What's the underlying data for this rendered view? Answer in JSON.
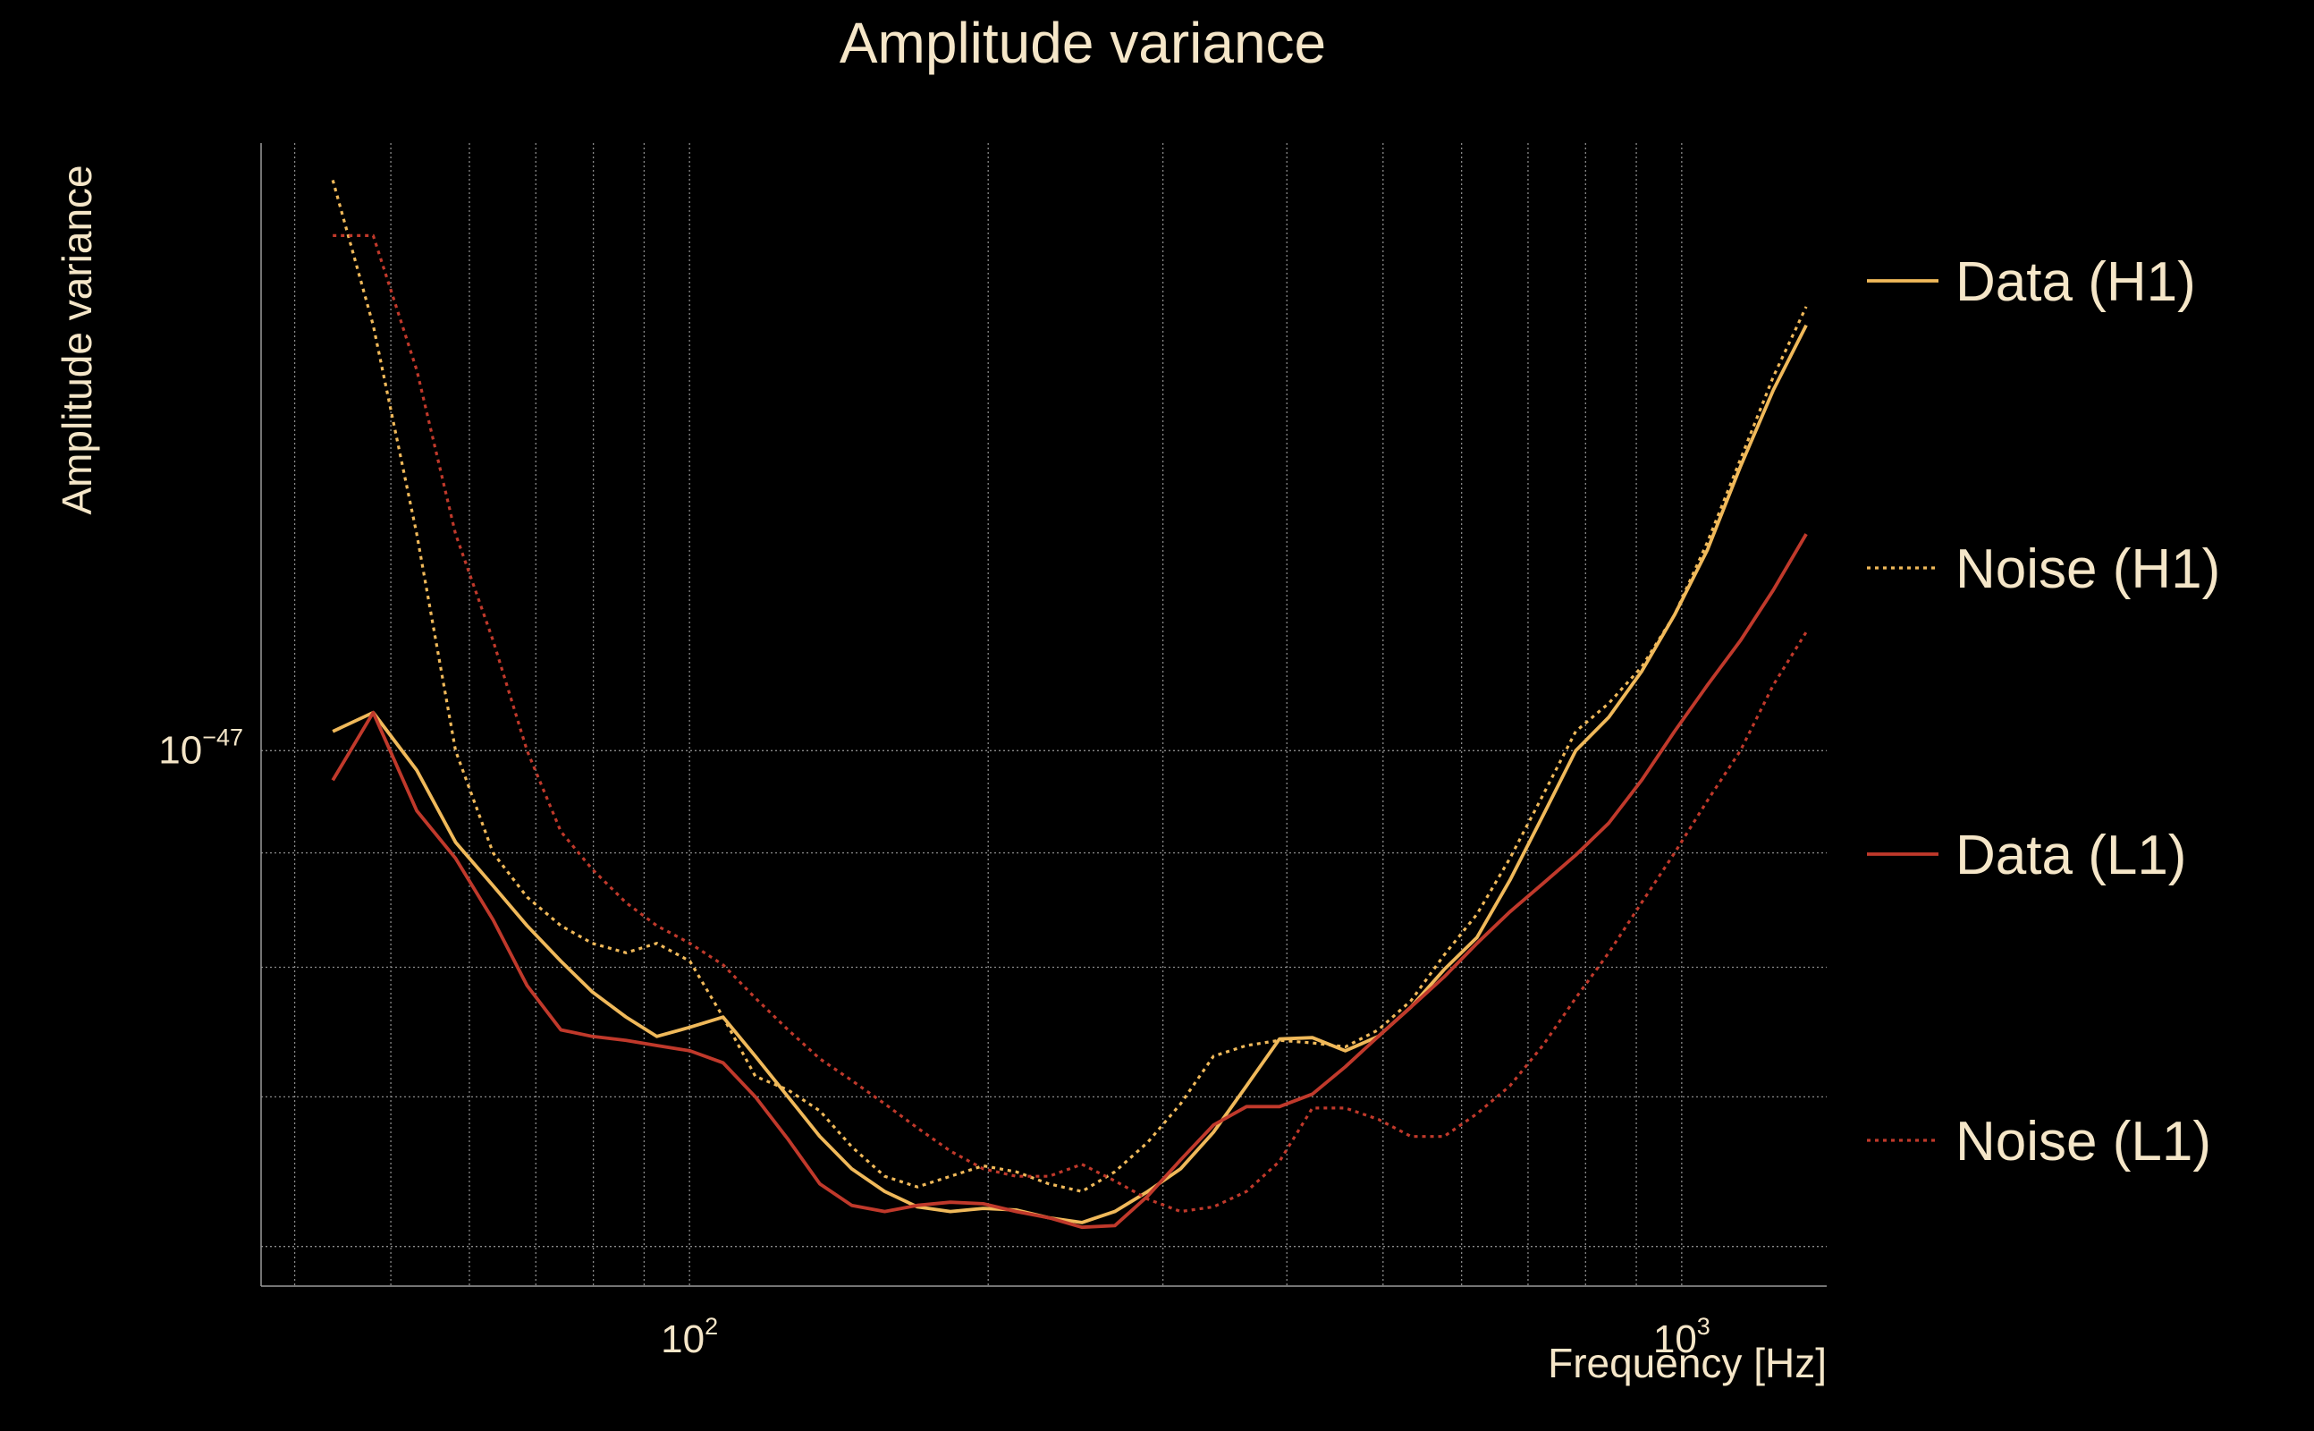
{
  "chart_data": {
    "type": "line",
    "title": "Amplitude variance",
    "xlabel": "Frequency [Hz]",
    "ylabel": "Amplitude variance",
    "xscale": "log",
    "yscale": "log",
    "xlim": [
      37,
      1400
    ],
    "ylim": [
      5.76e-48,
      1.87e-47
    ],
    "grid": true,
    "x_ticks": [
      {
        "value": 100,
        "base": "10",
        "exp": "2"
      },
      {
        "value": 1000,
        "base": "10",
        "exp": "3"
      }
    ],
    "y_ticks": [
      {
        "value": 1e-47,
        "base": "10",
        "exp": "−47"
      }
    ],
    "legend_position": "right",
    "x": [
      43.7,
      48.0,
      53.1,
      58.1,
      63.4,
      68.6,
      74.2,
      79.8,
      86.3,
      92.7,
      100.1,
      108.1,
      116.5,
      125.7,
      135.3,
      145.7,
      157.3,
      169.7,
      183.2,
      197.7,
      213.4,
      230.3,
      248.6,
      268.3,
      289.6,
      312.6,
      337.4,
      364.2,
      393.2,
      424.4,
      458.1,
      494.5,
      533.7,
      576.0,
      621.8,
      671.2,
      724.5,
      782.0,
      844.1,
      911.2,
      983.5,
      1061.6,
      1145.9,
      1236.9,
      1335.1
    ],
    "series": [
      {
        "name": "Data (H1)",
        "color": "#f0b95a",
        "dash": "solid",
        "values": [
          1.02e-47,
          1.04e-47,
          9.8e-48,
          9.1e-48,
          8.7e-48,
          8.35e-48,
          8.05e-48,
          7.8e-48,
          7.6e-48,
          7.45e-48,
          7.52e-48,
          7.6e-48,
          7.3e-48,
          7e-48,
          6.72e-48,
          6.5e-48,
          6.35e-48,
          6.25e-48,
          6.22e-48,
          6.24e-48,
          6.23e-48,
          6.18e-48,
          6.15e-48,
          6.22e-48,
          6.35e-48,
          6.5e-48,
          6.75e-48,
          7.08e-48,
          7.43e-48,
          7.44e-48,
          7.34e-48,
          7.45e-48,
          7.68e-48,
          7.98e-48,
          8.25e-48,
          8.75e-48,
          9.35e-48,
          1e-47,
          1.035e-47,
          1.085e-47,
          1.15e-47,
          1.23e-47,
          1.34e-47,
          1.45e-47,
          1.55e-47
        ]
      },
      {
        "name": "Noise (H1)",
        "color": "#f0b95a",
        "dash": "dotted",
        "values": [
          1.8e-47,
          1.55e-47,
          1.25e-47,
          1e-47,
          9e-48,
          8.6e-48,
          8.35e-48,
          8.2e-48,
          8.12e-48,
          8.2e-48,
          8.05e-48,
          7.6e-48,
          7.15e-48,
          7.05e-48,
          6.9e-48,
          6.65e-48,
          6.45e-48,
          6.38e-48,
          6.45e-48,
          6.52e-48,
          6.48e-48,
          6.4e-48,
          6.35e-48,
          6.48e-48,
          6.68e-48,
          6.95e-48,
          7.3e-48,
          7.38e-48,
          7.42e-48,
          7.4e-48,
          7.37e-48,
          7.5e-48,
          7.73e-48,
          8.1e-48,
          8.45e-48,
          8.95e-48,
          9.55e-48,
          1.02e-47,
          1.05e-47,
          1.09e-47,
          1.15e-47,
          1.24e-47,
          1.35e-47,
          1.47e-47,
          1.58e-47
        ]
      },
      {
        "name": "Data (L1)",
        "color": "#c0392b",
        "dash": "solid",
        "values": [
          9.7e-48,
          1.04e-47,
          9.4e-48,
          8.95e-48,
          8.4e-48,
          7.85e-48,
          7.5e-48,
          7.45e-48,
          7.42e-48,
          7.38e-48,
          7.34e-48,
          7.25e-48,
          7e-48,
          6.7e-48,
          6.4e-48,
          6.26e-48,
          6.22e-48,
          6.26e-48,
          6.28e-48,
          6.27e-48,
          6.22e-48,
          6.18e-48,
          6.12e-48,
          6.13e-48,
          6.32e-48,
          6.56e-48,
          6.8e-48,
          6.93e-48,
          6.93e-48,
          7.02e-48,
          7.22e-48,
          7.45e-48,
          7.68e-48,
          7.92e-48,
          8.2e-48,
          8.47e-48,
          8.72e-48,
          8.98e-48,
          9.28e-48,
          9.7e-48,
          1.02e-47,
          1.07e-47,
          1.12e-47,
          1.18e-47,
          1.25e-47
        ]
      },
      {
        "name": "Noise (L1)",
        "color": "#c0392b",
        "dash": "dotted",
        "values": [
          1.7e-47,
          1.7e-47,
          1.48e-47,
          1.25e-47,
          1.12e-47,
          1e-47,
          9.2e-48,
          8.85e-48,
          8.55e-48,
          8.35e-48,
          8.2e-48,
          8.02e-48,
          7.75e-48,
          7.5e-48,
          7.28e-48,
          7.12e-48,
          6.95e-48,
          6.78e-48,
          6.62e-48,
          6.5e-48,
          6.45e-48,
          6.45e-48,
          6.53e-48,
          6.42e-48,
          6.3e-48,
          6.22e-48,
          6.25e-48,
          6.35e-48,
          6.55e-48,
          6.92e-48,
          6.92e-48,
          6.84e-48,
          6.72e-48,
          6.72e-48,
          6.88e-48,
          7.08e-48,
          7.38e-48,
          7.75e-48,
          8.12e-48,
          8.55e-48,
          9e-48,
          9.5e-48,
          1e-47,
          1.07e-47,
          1.13e-47
        ]
      }
    ]
  }
}
